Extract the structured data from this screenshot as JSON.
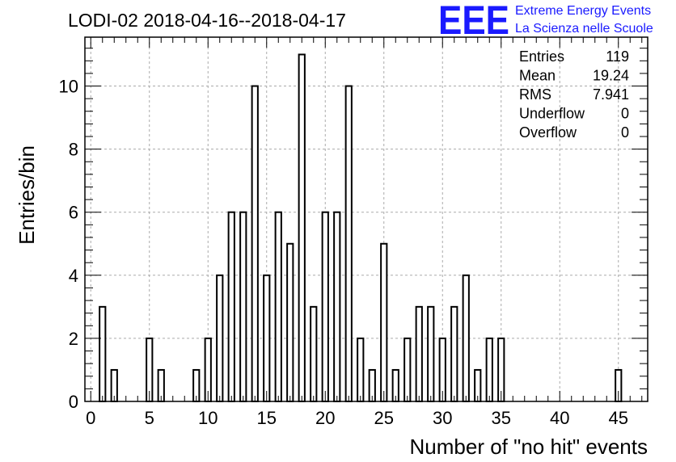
{
  "chart_data": {
    "type": "bar",
    "title": "LODI-02 2018-04-16--2018-04-17",
    "xlabel": "Number of \"no hit\" events",
    "ylabel": "Entries/bin",
    "xlim": [
      -0.5,
      47.5
    ],
    "ylim": [
      0,
      11.55
    ],
    "grid": true,
    "xticks": [
      0,
      5,
      10,
      15,
      20,
      25,
      30,
      35,
      40,
      45
    ],
    "yticks": [
      0,
      2,
      4,
      6,
      8,
      10
    ],
    "bin_width": 0.5,
    "x": [
      1,
      2,
      5,
      6,
      9,
      10,
      11,
      12,
      13,
      14,
      15,
      16,
      17,
      18,
      19,
      20,
      21,
      22,
      23,
      24,
      25,
      26,
      27,
      28,
      29,
      30,
      31,
      32,
      33,
      34,
      35,
      45
    ],
    "values": [
      3,
      1,
      2,
      1,
      1,
      2,
      4,
      6,
      6,
      10,
      4,
      6,
      5,
      11,
      3,
      6,
      6,
      10,
      2,
      1,
      5,
      1,
      2,
      3,
      3,
      2,
      3,
      4,
      1,
      2,
      2,
      1
    ],
    "stats": [
      {
        "label": "Entries",
        "value": "119"
      },
      {
        "label": "Mean",
        "value": "19.24"
      },
      {
        "label": "RMS",
        "value": "7.941"
      },
      {
        "label": "Underflow",
        "value": "0"
      },
      {
        "label": "Overflow",
        "value": "0"
      }
    ]
  },
  "logo": {
    "letters": "EEE",
    "line1": "Extreme Energy Events",
    "line2": "La Scienza nelle Scuole",
    "color": "#1a1aff"
  }
}
